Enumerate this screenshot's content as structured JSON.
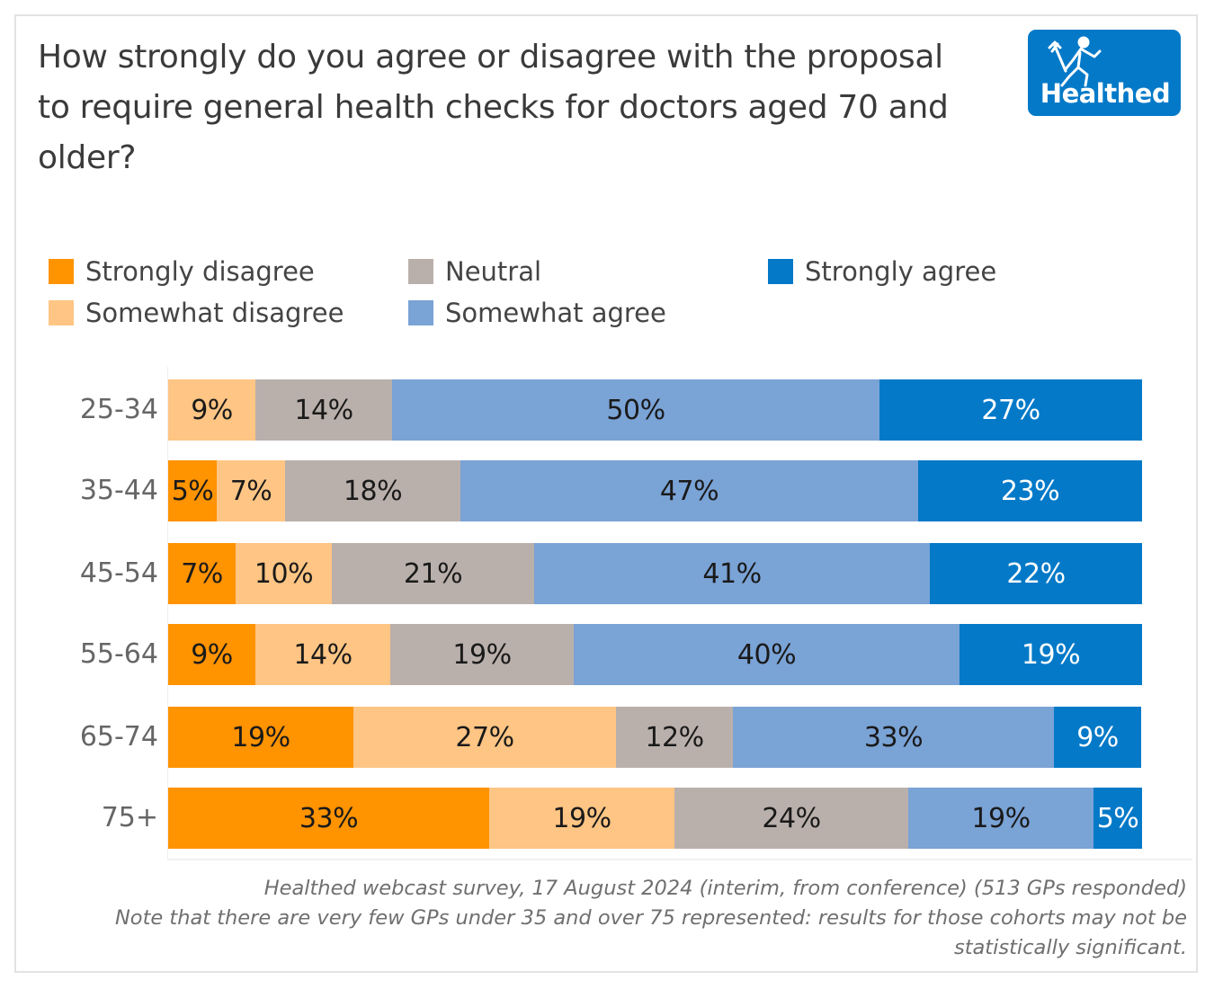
{
  "title": "How strongly do you agree or disagree with the proposal to require general health checks for doctors aged 70 and older?",
  "logo": {
    "text": "Healthed",
    "icon": "running-figure-icon",
    "color": "#0479c8"
  },
  "footer": {
    "source": "Healthed webcast survey, 17 August 2024 (interim, from conference) (513 GPs responded)",
    "note": "Note that there are very few GPs under 35 and over 75 represented: results for those cohorts may not be statistically significant."
  },
  "chart_data": {
    "type": "bar",
    "orientation": "horizontal",
    "stacked": true,
    "normalized": true,
    "title": "How strongly do you agree or disagree with the proposal to require general health checks for doctors aged 70 and older?",
    "xlabel": "",
    "ylabel": "",
    "unit": "%",
    "legend_position": "top",
    "grid": false,
    "categories": [
      "25-34",
      "35-44",
      "45-54",
      "55-64",
      "65-74",
      "75+"
    ],
    "series": [
      {
        "name": "Strongly disagree",
        "color": "#ff9300",
        "label_color": "#1a1a1a",
        "values": [
          0,
          5,
          7,
          9,
          19,
          33
        ]
      },
      {
        "name": "Somewhat disagree",
        "color": "#ffc584",
        "label_color": "#1a1a1a",
        "values": [
          9,
          7,
          10,
          14,
          27,
          19
        ]
      },
      {
        "name": "Neutral",
        "color": "#bab0ab",
        "label_color": "#1a1a1a",
        "values": [
          14,
          18,
          21,
          19,
          12,
          24
        ]
      },
      {
        "name": "Somewhat agree",
        "color": "#7aa3d6",
        "label_color": "#1a1a1a",
        "values": [
          50,
          47,
          41,
          40,
          33,
          19
        ]
      },
      {
        "name": "Strongly agree",
        "color": "#0479c8",
        "label_color": "#ffffff",
        "values": [
          27,
          23,
          22,
          19,
          9,
          5
        ]
      }
    ],
    "legend_layout": [
      [
        "Strongly disagree",
        "Somewhat disagree"
      ],
      [
        "Neutral",
        "Somewhat agree"
      ],
      [
        "Strongly agree"
      ]
    ]
  }
}
